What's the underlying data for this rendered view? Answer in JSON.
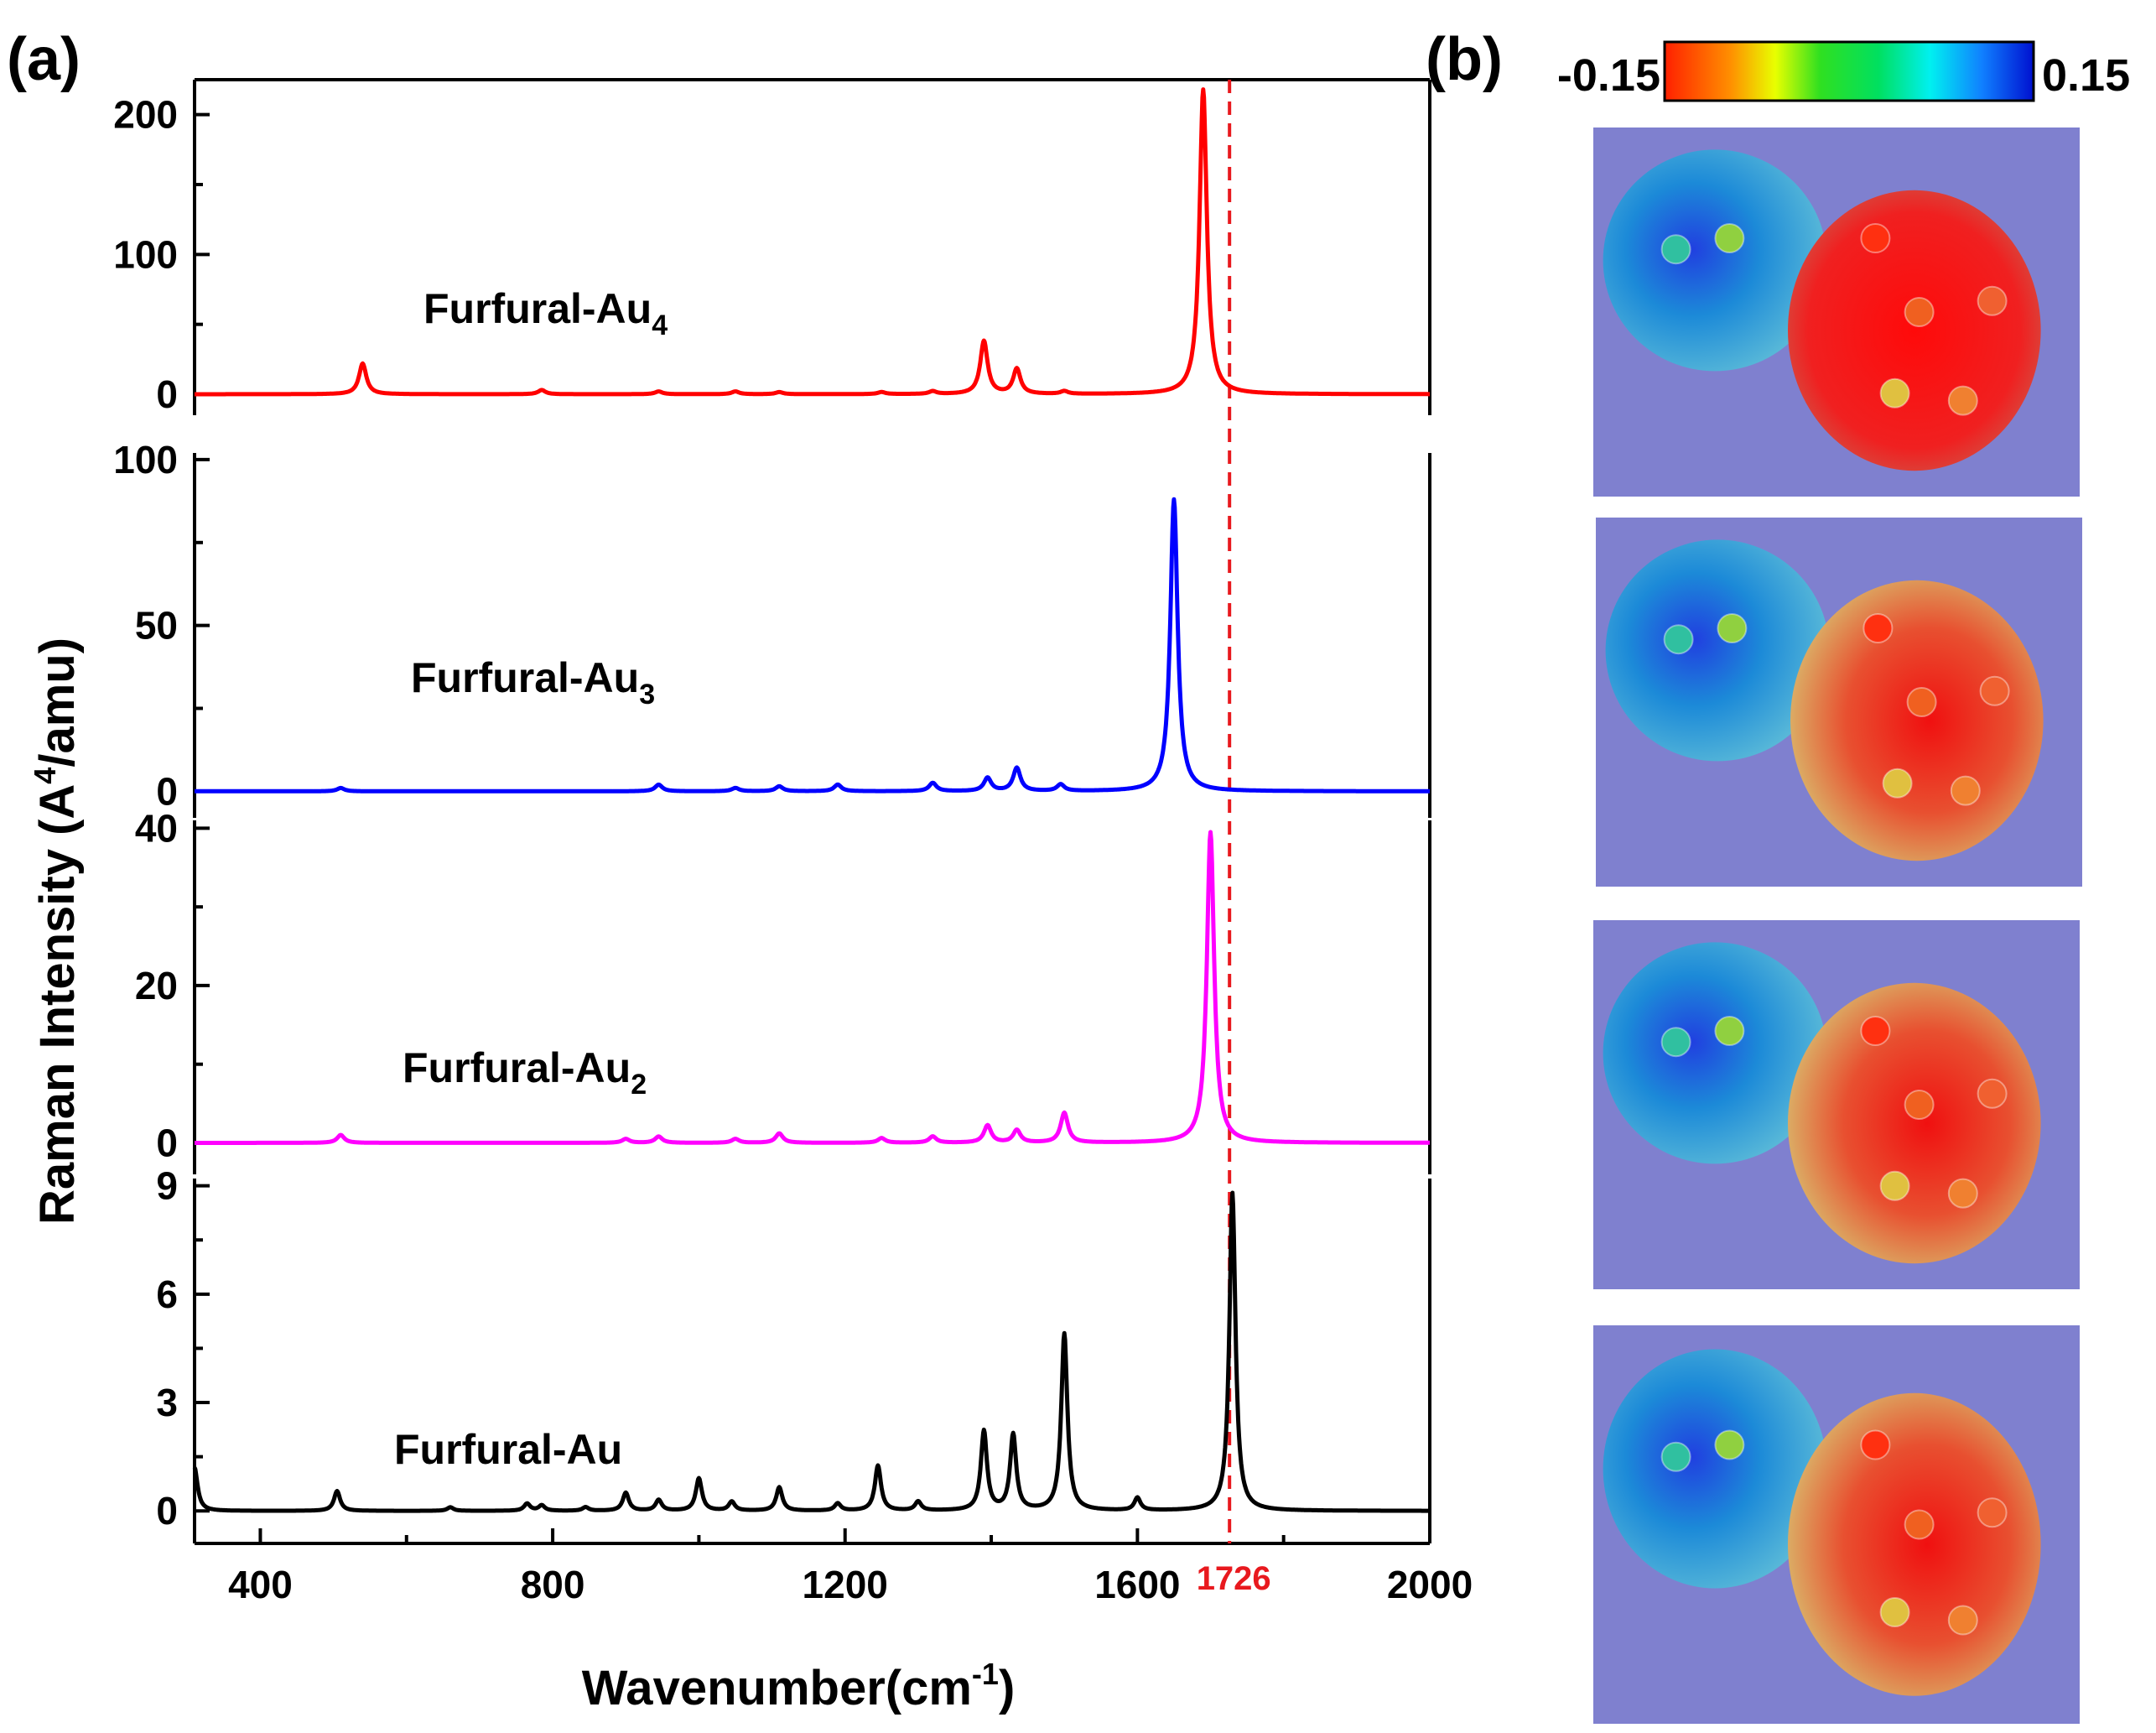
{
  "panel_a_label": "(a)",
  "panel_b_label": "(b)",
  "chart_data": {
    "type": "line",
    "layout": "stacked",
    "xlabel_main": "Wavenumber(cm",
    "xlabel_sup": "-1",
    "xlabel_tail": ")",
    "ylabel_main": "Raman Intensity (A",
    "ylabel_sup": "4",
    "ylabel_tail": "/amu)",
    "xlim": [
      310,
      2000
    ],
    "xticks": [
      400,
      800,
      1200,
      1600,
      2000
    ],
    "marker": {
      "x": 1726,
      "label": "1726",
      "color": "#e8191e",
      "style": "dashed"
    },
    "series": [
      {
        "name": "Furfural-Au4",
        "label_main": "Furfural-Au",
        "label_sub": "4",
        "color": "#ff0000",
        "ylim": [
          -15,
          225
        ],
        "yticks": [
          0,
          100,
          200
        ],
        "baseline": 0,
        "width": 6,
        "peaks": [
          [
            540,
            22
          ],
          [
            785,
            3
          ],
          [
            945,
            2
          ],
          [
            1050,
            2
          ],
          [
            1110,
            1.5
          ],
          [
            1250,
            1.5
          ],
          [
            1320,
            2
          ],
          [
            1390,
            38
          ],
          [
            1435,
            18
          ],
          [
            1500,
            2
          ],
          [
            1690,
            218
          ]
        ]
      },
      {
        "name": "Furfural-Au3",
        "label_main": "Furfural-Au",
        "label_sub": "3",
        "color": "#0000ff",
        "ylim": [
          -8,
          102
        ],
        "yticks": [
          0,
          50,
          100
        ],
        "baseline": 0,
        "width": 6,
        "peaks": [
          [
            510,
            1
          ],
          [
            945,
            2
          ],
          [
            1050,
            1
          ],
          [
            1110,
            1.5
          ],
          [
            1190,
            2
          ],
          [
            1320,
            2.5
          ],
          [
            1395,
            4
          ],
          [
            1435,
            7
          ],
          [
            1495,
            2
          ],
          [
            1650,
            88
          ]
        ]
      },
      {
        "name": "Furfural-Au2",
        "label_main": "Furfural-Au",
        "label_sub": "2",
        "color": "#ff00ff",
        "ylim": [
          -4,
          41
        ],
        "yticks": [
          0,
          20,
          40
        ],
        "baseline": 0,
        "width": 6,
        "peaks": [
          [
            510,
            1
          ],
          [
            900,
            0.5
          ],
          [
            945,
            0.8
          ],
          [
            1050,
            0.5
          ],
          [
            1110,
            1.2
          ],
          [
            1250,
            0.6
          ],
          [
            1320,
            0.8
          ],
          [
            1395,
            2.2
          ],
          [
            1435,
            1.6
          ],
          [
            1500,
            3.8
          ],
          [
            1700,
            39.5
          ]
        ]
      },
      {
        "name": "Furfural-Au",
        "label_main": "Furfural-Au",
        "label_sub": "",
        "color": "#000000",
        "ylim": [
          -0.9,
          9.2
        ],
        "yticks": [
          0,
          3,
          6,
          9
        ],
        "baseline": 0,
        "width": 5,
        "peaks": [
          [
            310,
            1.2
          ],
          [
            505,
            0.55
          ],
          [
            660,
            0.1
          ],
          [
            765,
            0.2
          ],
          [
            785,
            0.15
          ],
          [
            845,
            0.1
          ],
          [
            900,
            0.5
          ],
          [
            945,
            0.3
          ],
          [
            1000,
            0.9
          ],
          [
            1045,
            0.25
          ],
          [
            1110,
            0.65
          ],
          [
            1190,
            0.2
          ],
          [
            1245,
            1.25
          ],
          [
            1300,
            0.25
          ],
          [
            1390,
            2.2
          ],
          [
            1430,
            2.1
          ],
          [
            1500,
            4.9
          ],
          [
            1600,
            0.35
          ],
          [
            1730,
            8.8
          ]
        ]
      }
    ],
    "colorbar": {
      "min_label": "-0.15",
      "max_label": "0.15"
    }
  },
  "esp_maps": [
    {
      "name": "esp-map-furfural-au4",
      "red_share": 0.9
    },
    {
      "name": "esp-map-furfural-au3",
      "red_share": 0.7
    },
    {
      "name": "esp-map-furfural-au2",
      "red_share": 0.6
    },
    {
      "name": "esp-map-furfural-au",
      "red_share": 0.45
    }
  ]
}
